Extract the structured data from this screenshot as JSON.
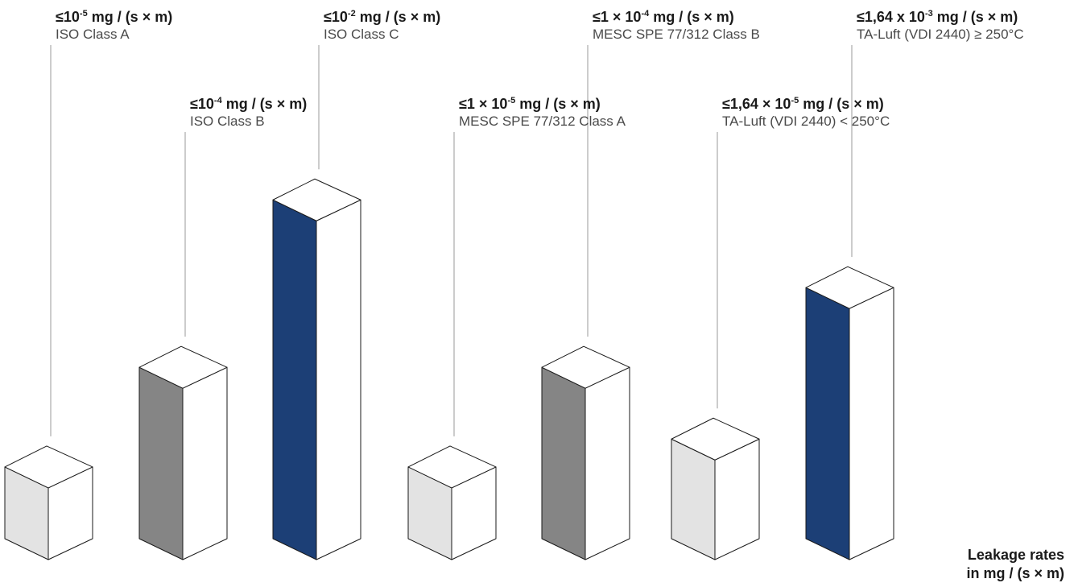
{
  "chart_data": {
    "type": "bar",
    "style": "isometric-3d-columns",
    "categories": [
      "ISO Class A",
      "ISO Class B",
      "ISO Class C",
      "MESC SPE 77/312 Class A",
      "MESC SPE 77/312 Class B",
      "TA-Luft (VDI 2440) < 250°C",
      "TA-Luft (VDI 2440) ≥ 250°C"
    ],
    "values": [
      1e-05,
      0.0001,
      0.01,
      1e-05,
      0.0001,
      1.64e-05,
      0.00164
    ],
    "bars": [
      {
        "rate_prefix": "≤10",
        "rate_exp": "-5",
        "rate_suffix": " mg / (s × m)",
        "standard": "ISO Class A",
        "side_color": "#e3e3e3",
        "level": 0.18
      },
      {
        "rate_prefix": "≤10",
        "rate_exp": "-4",
        "rate_suffix": " mg / (s × m)",
        "standard": "ISO Class B",
        "side_color": "#858585",
        "level": 0.43
      },
      {
        "rate_prefix": "≤10",
        "rate_exp": "-2",
        "rate_suffix": " mg / (s × m)",
        "standard": "ISO Class C",
        "side_color": "#1c3f76",
        "level": 0.85
      },
      {
        "rate_prefix": "≤1 × 10",
        "rate_exp": "-5",
        "rate_suffix": " mg / (s × m)",
        "standard": "MESC SPE 77/312 Class A",
        "side_color": "#e3e3e3",
        "level": 0.18
      },
      {
        "rate_prefix": "≤1 × 10",
        "rate_exp": "-4",
        "rate_suffix": " mg / (s × m)",
        "standard": "MESC SPE 77/312 Class B",
        "side_color": "#858585",
        "level": 0.43
      },
      {
        "rate_prefix": "≤1,64 × 10",
        "rate_exp": "-5",
        "rate_suffix": " mg / (s × m)",
        "standard": "TA-Luft (VDI 2440) < 250°C",
        "side_color": "#e3e3e3",
        "level": 0.25
      },
      {
        "rate_prefix": "≤1,64 x 10",
        "rate_exp": "-3",
        "rate_suffix": " mg / (s × m)",
        "standard": "TA-Luft (VDI 2440) ≥ 250°C",
        "side_color": "#1c3f76",
        "level": 0.63
      }
    ],
    "unit_label_line1": "Leakage rates",
    "unit_label_line2": "in mg / (s × m)",
    "grid": false,
    "legend": "none"
  },
  "colors": {
    "outline": "#1a1a1a",
    "front_face": "#ffffff",
    "top_face": "#ffffff",
    "leader_line": "#9a9a9a"
  }
}
